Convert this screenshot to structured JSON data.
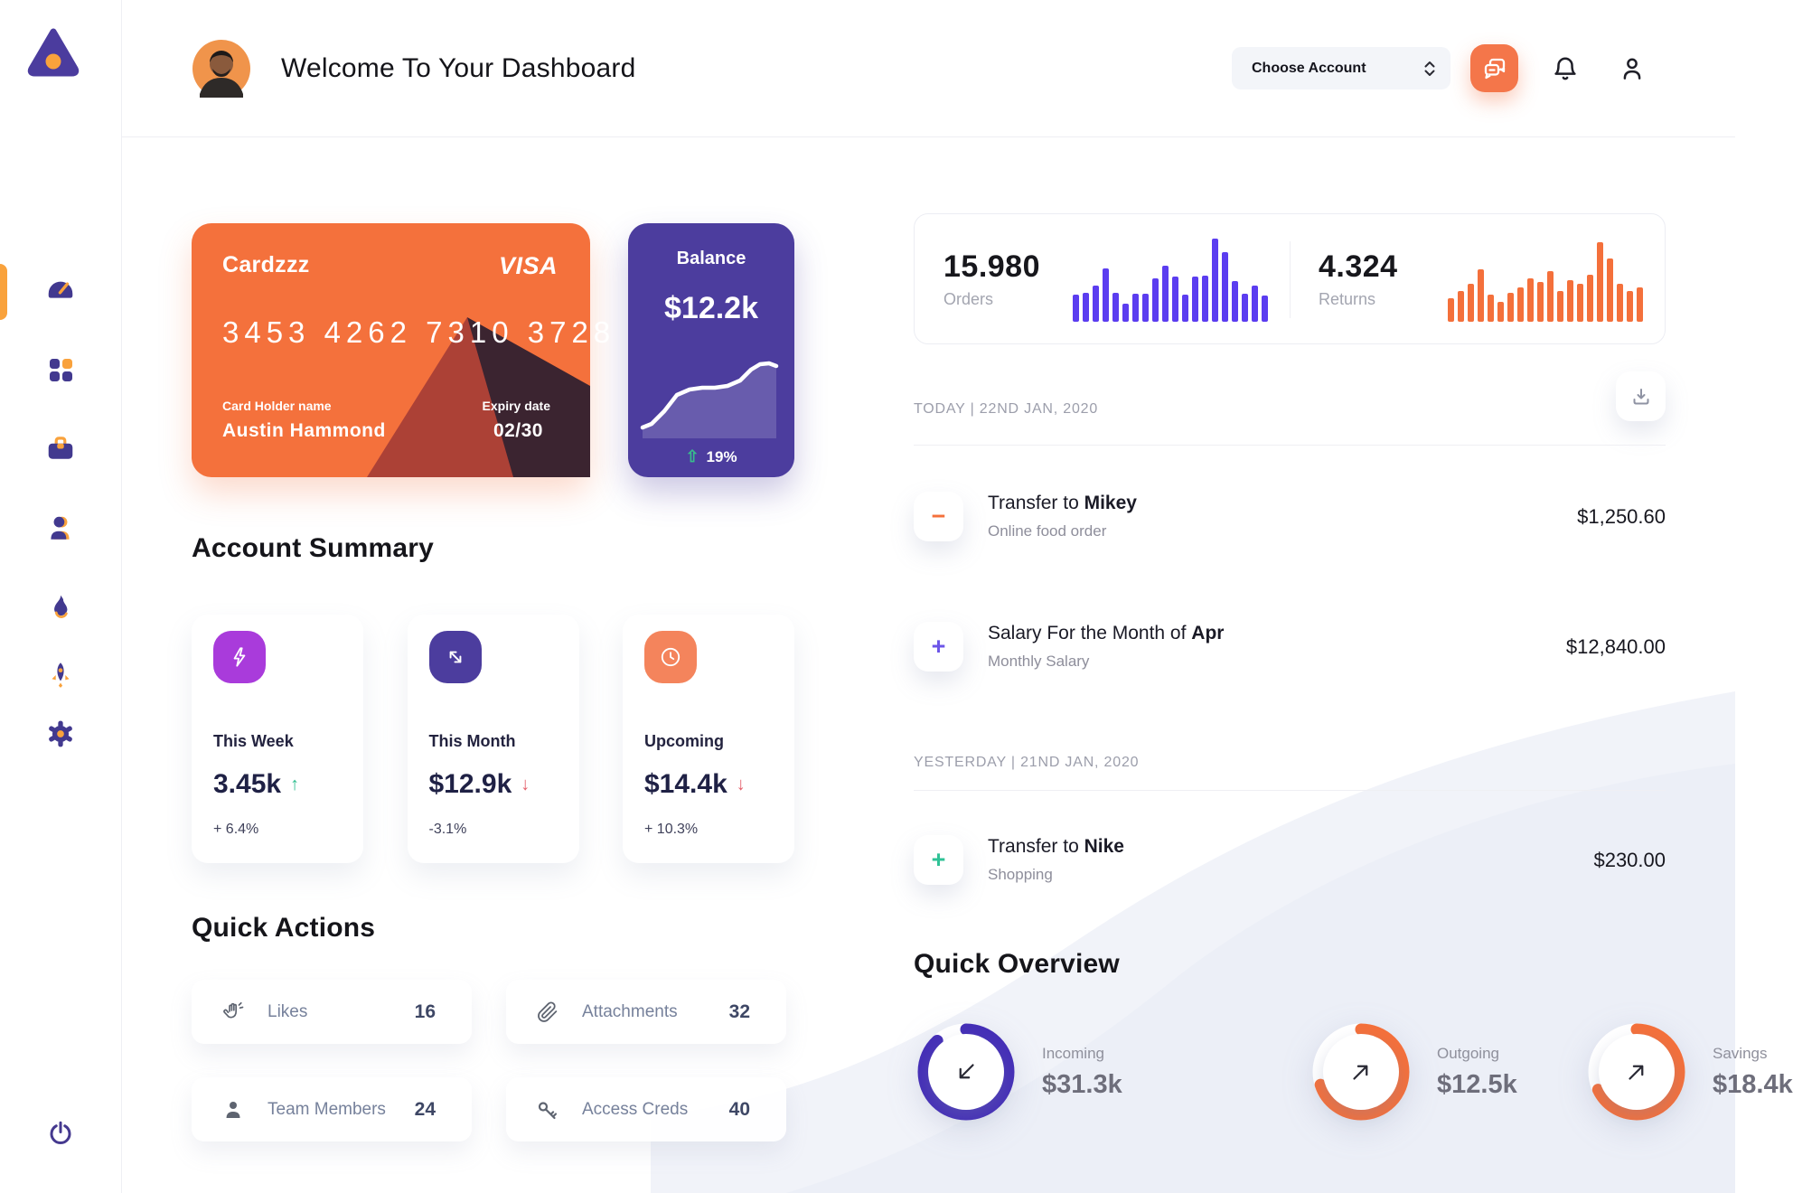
{
  "header": {
    "title": "Welcome To Your Dashboard",
    "account_select_label": "Choose Account"
  },
  "sidebar": {
    "icons": [
      "dashboard-gauge-icon",
      "apps-grid-icon",
      "briefcase-icon",
      "clients-icon",
      "flame-icon",
      "rocket-icon",
      "settings-gear-icon",
      "power-icon"
    ],
    "active_item": "dashboard"
  },
  "credit_card": {
    "name": "Cardzzz",
    "brand": "VISA",
    "number": "3453 4262 7310 3728",
    "holder_label": "Card Holder name",
    "holder_name": "Austin Hammond",
    "expiry_label": "Expiry date",
    "expiry": "02/30",
    "color": "#F4713C"
  },
  "balance_card": {
    "title": "Balance",
    "value": "$12.2k",
    "delta": "19%",
    "trend": "up",
    "color": "#4C3D9E"
  },
  "account_summary": {
    "title": "Account Summary",
    "cards": [
      {
        "label": "This Week",
        "value": "3.45k",
        "trend": "up",
        "delta": "+ 6.4%",
        "icon": "lightning-icon",
        "icon_color": "#A93BDB"
      },
      {
        "label": "This Month",
        "value": "$12.9k",
        "trend": "down",
        "delta": "-3.1%",
        "icon": "trend-arrow-icon",
        "icon_color": "#4C3D9E"
      },
      {
        "label": "Upcoming",
        "value": "$14.4k",
        "trend": "down",
        "delta": "+ 10.3%",
        "icon": "clock-icon",
        "icon_color": "#F4845C"
      }
    ]
  },
  "quick_actions": {
    "title": "Quick Actions",
    "items": [
      {
        "label": "Likes",
        "count": "16",
        "icon": "clap-icon"
      },
      {
        "label": "Attachments",
        "count": "32",
        "icon": "paperclip-icon"
      },
      {
        "label": "Team Members",
        "count": "24",
        "icon": "person-icon"
      },
      {
        "label": "Access Creds",
        "count": "40",
        "icon": "key-icon"
      }
    ]
  },
  "stats_panel": {
    "orders": {
      "value": "15.980",
      "label": "Orders"
    },
    "returns": {
      "value": "4.324",
      "label": "Returns"
    }
  },
  "transactions": {
    "groups": [
      {
        "date_label": "TODAY | 22ND JAN, 2020",
        "rows": [
          {
            "title": "Transfer to",
            "title_bold": "Mikey",
            "subtitle": "Online food order",
            "amount": "$1,250.60",
            "icon": "minus",
            "icon_color": "#F4703B"
          },
          {
            "title": "Salary For the Month of",
            "title_bold": "Apr",
            "subtitle": "Monthly Salary",
            "amount": "$12,840.00",
            "icon": "plus",
            "icon_color": "#6C55E8"
          }
        ]
      },
      {
        "date_label": "YESTERDAY | 21ND JAN, 2020",
        "rows": [
          {
            "title": "Transfer to",
            "title_bold": "Nike",
            "subtitle": "Shopping",
            "amount": "$230.00",
            "icon": "plus",
            "icon_color": "#2FC296"
          }
        ]
      }
    ]
  },
  "quick_overview": {
    "title": "Quick Overview",
    "items": [
      {
        "label": "Incoming",
        "value": "$31.3k",
        "percent": 88,
        "color": "#452FB7",
        "arrow": "down-left"
      },
      {
        "label": "Outgoing",
        "value": "$12.5k",
        "percent": 70,
        "color": "#F4703B",
        "arrow": "up-right"
      },
      {
        "label": "Savings",
        "value": "$18.4k",
        "percent": 68,
        "color": "#F4703B",
        "arrow": "up-right"
      }
    ]
  },
  "chart_data": [
    {
      "type": "bar",
      "name": "orders-sparkline",
      "color": "#5B3DF0",
      "values": [
        30,
        32,
        40,
        59,
        32,
        20,
        31,
        31,
        48,
        62,
        50,
        30,
        50,
        51,
        92,
        77,
        45,
        31,
        40,
        29
      ]
    },
    {
      "type": "bar",
      "name": "returns-sparkline",
      "color": "#F4703B",
      "values": [
        26,
        34,
        42,
        58,
        30,
        22,
        32,
        38,
        48,
        44,
        56,
        34,
        46,
        42,
        52,
        88,
        70,
        42,
        34,
        38
      ]
    },
    {
      "type": "line",
      "name": "balance-trend",
      "color": "#FFFFFF",
      "x": [
        4,
        14,
        28,
        42,
        56,
        70,
        84,
        98,
        112,
        124,
        134,
        144,
        152
      ],
      "y": [
        98,
        94,
        80,
        62,
        56,
        54,
        54,
        52,
        46,
        34,
        28,
        27,
        30
      ]
    },
    {
      "type": "donut",
      "name": "quick-overview-rings",
      "values": [
        {
          "label": "Incoming",
          "percent": 88
        },
        {
          "label": "Outgoing",
          "percent": 70
        },
        {
          "label": "Savings",
          "percent": 68
        }
      ]
    }
  ]
}
